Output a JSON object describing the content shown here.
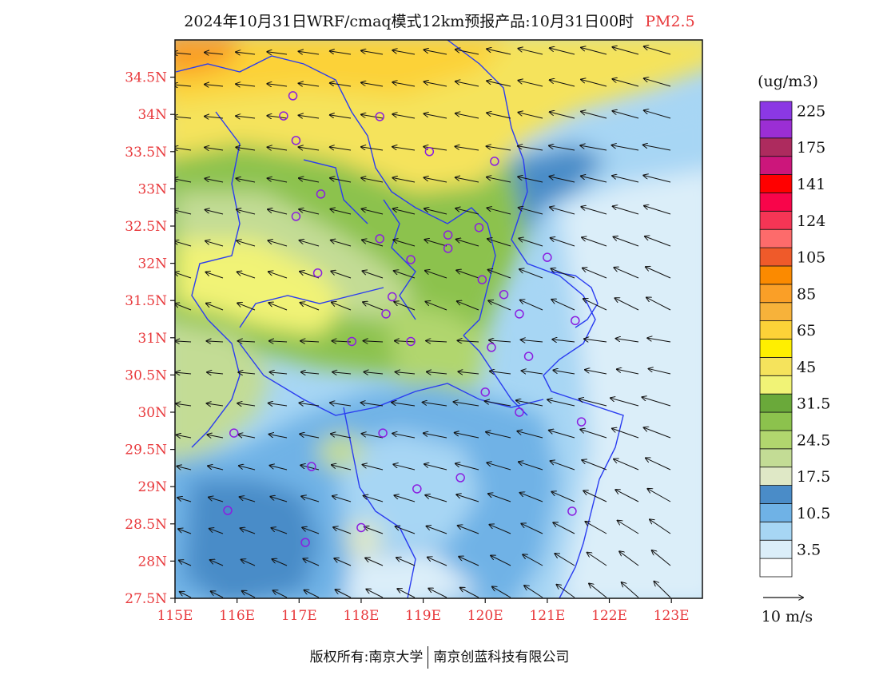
{
  "header": {
    "title": "2024年10月31日WRF/cmaq模式12km预报产品:10月31日00时",
    "pollutant": "PM2.5"
  },
  "map": {
    "lon_range": [
      115,
      123.5
    ],
    "lat_range": [
      27.5,
      35
    ],
    "lon_ticks": [
      {
        "lon": 115,
        "label": "115E"
      },
      {
        "lon": 116,
        "label": "116E"
      },
      {
        "lon": 117,
        "label": "117E"
      },
      {
        "lon": 118,
        "label": "118E"
      },
      {
        "lon": 119,
        "label": "119E"
      },
      {
        "lon": 120,
        "label": "120E"
      },
      {
        "lon": 121,
        "label": "121E"
      },
      {
        "lon": 122,
        "label": "122E"
      },
      {
        "lon": 123,
        "label": "123E"
      }
    ],
    "lat_ticks": [
      {
        "lat": 34.5,
        "label": "34.5N"
      },
      {
        "lat": 34,
        "label": "34N"
      },
      {
        "lat": 33.5,
        "label": "33.5N"
      },
      {
        "lat": 33,
        "label": "33N"
      },
      {
        "lat": 32.5,
        "label": "32.5N"
      },
      {
        "lat": 32,
        "label": "32N"
      },
      {
        "lat": 31.5,
        "label": "31.5N"
      },
      {
        "lat": 31,
        "label": "31N"
      },
      {
        "lat": 30.5,
        "label": "30.5N"
      },
      {
        "lat": 30,
        "label": "30N"
      },
      {
        "lat": 29.5,
        "label": "29.5N"
      },
      {
        "lat": 29,
        "label": "29N"
      },
      {
        "lat": 28.5,
        "label": "28.5N"
      },
      {
        "lat": 28,
        "label": "28N"
      },
      {
        "lat": 27.5,
        "label": "27.5N"
      }
    ],
    "stations": [
      [
        116.9,
        34.25
      ],
      [
        116.75,
        33.98
      ],
      [
        118.3,
        33.97
      ],
      [
        116.95,
        33.65
      ],
      [
        119.1,
        33.5
      ],
      [
        120.15,
        33.37
      ],
      [
        117.35,
        32.93
      ],
      [
        116.95,
        32.63
      ],
      [
        118.3,
        32.33
      ],
      [
        119.4,
        32.38
      ],
      [
        119.9,
        32.48
      ],
      [
        119.4,
        32.2
      ],
      [
        118.8,
        32.05
      ],
      [
        121.0,
        32.08
      ],
      [
        117.3,
        31.87
      ],
      [
        119.95,
        31.78
      ],
      [
        120.3,
        31.58
      ],
      [
        118.5,
        31.55
      ],
      [
        118.4,
        31.32
      ],
      [
        120.55,
        31.32
      ],
      [
        121.45,
        31.23
      ],
      [
        117.85,
        30.95
      ],
      [
        118.8,
        30.95
      ],
      [
        120.1,
        30.87
      ],
      [
        120.7,
        30.75
      ],
      [
        120.0,
        30.27
      ],
      [
        120.55,
        30.0
      ],
      [
        121.55,
        29.87
      ],
      [
        115.95,
        29.72
      ],
      [
        118.35,
        29.72
      ],
      [
        117.2,
        29.27
      ],
      [
        119.6,
        29.12
      ],
      [
        118.9,
        28.97
      ],
      [
        115.85,
        28.68
      ],
      [
        118.0,
        28.45
      ],
      [
        121.4,
        28.67
      ],
      [
        117.1,
        28.25
      ]
    ],
    "wind_vector_legend": "10 m/s"
  },
  "colorbar": {
    "unit": "(ug/m3)",
    "bins": [
      {
        "color": "#ffffff",
        "label": ""
      },
      {
        "color": "#dbeef9",
        "label": "3.5"
      },
      {
        "color": "#a7d6f4",
        "label": ""
      },
      {
        "color": "#6fb2e6",
        "label": "10.5"
      },
      {
        "color": "#4a8cc8",
        "label": ""
      },
      {
        "color": "#dfe8c6",
        "label": "17.5"
      },
      {
        "color": "#c3dc95",
        "label": ""
      },
      {
        "color": "#b1d66e",
        "label": "24.5"
      },
      {
        "color": "#8cc24d",
        "label": ""
      },
      {
        "color": "#6aa93a",
        "label": "31.5"
      },
      {
        "color": "#f1f376",
        "label": ""
      },
      {
        "color": "#f5e35c",
        "label": "45"
      },
      {
        "color": "#ffef00",
        "label": ""
      },
      {
        "color": "#fcd238",
        "label": "65"
      },
      {
        "color": "#f7b23a",
        "label": ""
      },
      {
        "color": "#fa9f27",
        "label": "85"
      },
      {
        "color": "#fb8a00",
        "label": ""
      },
      {
        "color": "#ef5a2a",
        "label": "105"
      },
      {
        "color": "#fd6b6b",
        "label": ""
      },
      {
        "color": "#f53555",
        "label": "124"
      },
      {
        "color": "#f8054a",
        "label": ""
      },
      {
        "color": "#ff0000",
        "label": "141"
      },
      {
        "color": "#cc167b",
        "label": ""
      },
      {
        "color": "#ad2b5e",
        "label": "175"
      },
      {
        "color": "#9b2ed4",
        "label": ""
      },
      {
        "color": "#8b38e4",
        "label": "225"
      }
    ]
  },
  "footer": {
    "copyright": "版权所有:南京大学",
    "company": "南京创蓝科技有限公司"
  }
}
